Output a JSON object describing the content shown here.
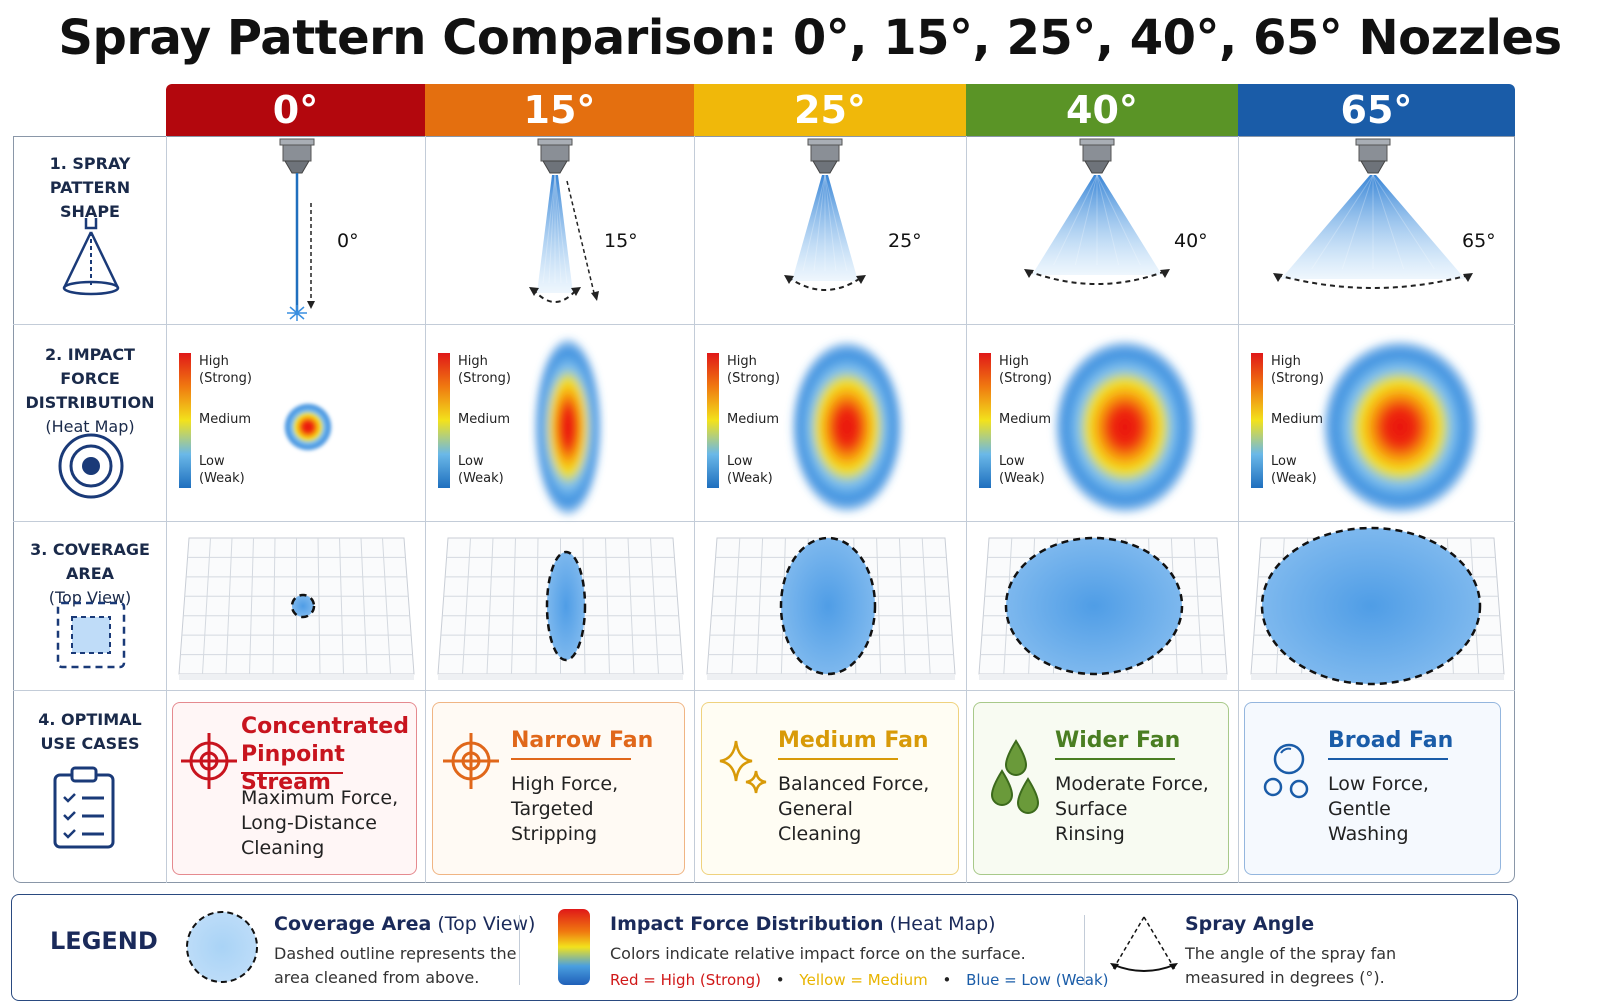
{
  "title": "Spray Pattern Comparison: 0°, 15°, 25°, 40°, 65° Nozzles",
  "columns": [
    {
      "angle": "0°",
      "header_color": "#b3070d",
      "card": {
        "title_lines": [
          "Concentrated",
          "Pinpoint Stream"
        ],
        "desc": "Maximum Force,\nLong-Distance\nCleaning",
        "color": "#c8141e",
        "bg": "#fff6f6",
        "border": "#e58a8f",
        "icon": "target-crosshair-icon"
      }
    },
    {
      "angle": "15°",
      "header_color": "#e46f0f",
      "card": {
        "title_lines": [
          "Narrow Fan"
        ],
        "desc": "High Force,\nTargeted\nStripping",
        "color": "#e0671a",
        "bg": "#fffaf4",
        "border": "#f0b584",
        "icon": "crosshair-icon"
      }
    },
    {
      "angle": "25°",
      "header_color": "#f0b80a",
      "card": {
        "title_lines": [
          "Medium Fan"
        ],
        "desc": "Balanced Force,\nGeneral\nCleaning",
        "color": "#d89a08",
        "bg": "#fffdf3",
        "border": "#efd27e",
        "icon": "sparkle-icon"
      }
    },
    {
      "angle": "40°",
      "header_color": "#5a9426",
      "card": {
        "title_lines": [
          "Wider Fan"
        ],
        "desc": "Moderate Force,\nSurface\nRinsing",
        "color": "#4a7e22",
        "bg": "#f8fbf2",
        "border": "#a8c98a",
        "icon": "water-drops-icon"
      }
    },
    {
      "angle": "65°",
      "header_color": "#1a5ca8",
      "card": {
        "title_lines": [
          "Broad Fan"
        ],
        "desc": "Low Force,\nGentle\nWashing",
        "color": "#1a5ca8",
        "bg": "#f5f9fe",
        "border": "#94b6de",
        "icon": "bubbles-icon"
      }
    }
  ],
  "rows": [
    {
      "title_lines": [
        "1. SPRAY PATTERN",
        "SHAPE"
      ],
      "sub": "",
      "icon": "spray-cone-icon"
    },
    {
      "title_lines": [
        "2. IMPACT FORCE",
        "DISTRIBUTION"
      ],
      "sub": "(Heat Map)",
      "icon": "concentric-target-icon"
    },
    {
      "title_lines": [
        "3. COVERAGE AREA"
      ],
      "sub": "(Top View)",
      "icon": "dashed-square-icon"
    },
    {
      "title_lines": [
        "4. OPTIMAL",
        "USE CASES"
      ],
      "sub": "",
      "icon": "clipboard-checklist-icon"
    }
  ],
  "heat_scale": {
    "high": [
      "High",
      "(Strong)"
    ],
    "medium": "Medium",
    "low": [
      "Low",
      "(Weak)"
    ]
  },
  "legend": {
    "title": "LEGEND",
    "coverage": {
      "title_bold": "Coverage Area",
      "title_rest": " (Top View)",
      "lines": [
        "Dashed outline represents the",
        "area cleaned from above."
      ]
    },
    "impact": {
      "title_bold": "Impact Force Distribution",
      "title_rest": " (Heat Map)",
      "line": "Colors indicate relative impact force on the surface.",
      "key_red": "Red = High (Strong)",
      "key_yellow": "Yellow = Medium",
      "key_blue": "Blue = Low (Weak)",
      "red": "#d01818",
      "yellow": "#e8b400",
      "blue": "#1a5ca8"
    },
    "angle": {
      "title": "Spray Angle",
      "lines": [
        "The angle of the spray fan",
        "measured in degrees (°)."
      ]
    }
  }
}
